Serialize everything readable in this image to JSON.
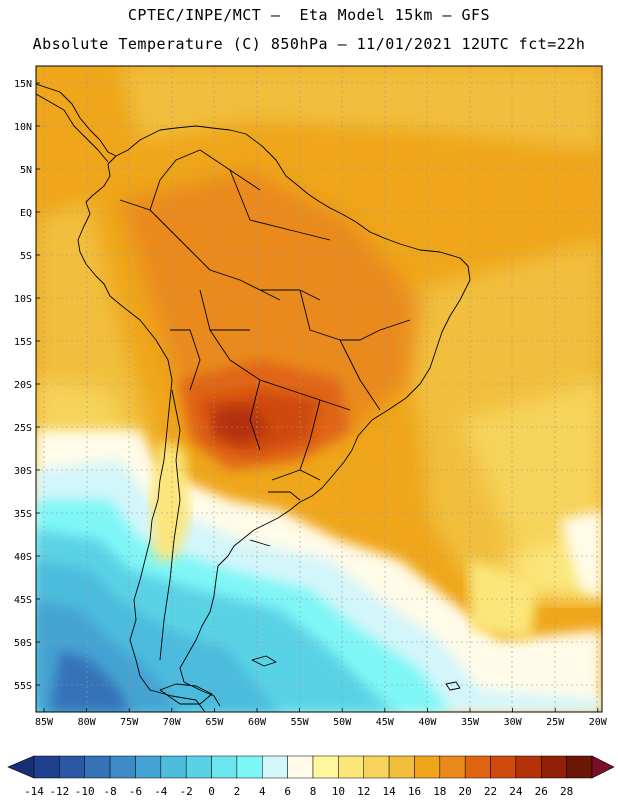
{
  "header": {
    "title_line1": "CPTEC/INPE/MCT –  Eta Model 15km – GFS",
    "title_line2": "Absolute Temperature (C) 850hPa – 11/01/2021 12UTC fct=22h"
  },
  "axes": {
    "lat_labels": [
      "15N",
      "10N",
      "5N",
      "EQ",
      "5S",
      "10S",
      "15S",
      "20S",
      "25S",
      "30S",
      "35S",
      "40S",
      "45S",
      "50S",
      "55S"
    ],
    "lon_labels": [
      "85W",
      "80W",
      "75W",
      "70W",
      "65W",
      "60W",
      "55W",
      "50W",
      "45W",
      "40W",
      "35W",
      "30W",
      "25W",
      "20W"
    ]
  },
  "colorbar": {
    "labels": [
      "-14",
      "-12",
      "-10",
      "-8",
      "-6",
      "-4",
      "-2",
      "0",
      "2",
      "4",
      "6",
      "8",
      "10",
      "12",
      "14",
      "16",
      "18",
      "20",
      "22",
      "24",
      "26",
      "28"
    ],
    "colors": [
      "#1f3f8f",
      "#2a58a6",
      "#3572b8",
      "#3e8bc8",
      "#44a3d3",
      "#4cbcdd",
      "#5ad2e6",
      "#6be6ee",
      "#7ff6f6",
      "#d3f6fa",
      "#fffbe8",
      "#fff7a0",
      "#fbe67a",
      "#f6d35a",
      "#f1bf3c",
      "#efa61a",
      "#ea8a1c",
      "#e06512",
      "#cf4a0c",
      "#b3320a",
      "#902008",
      "#6e1606"
    ],
    "low_color": "#182e74",
    "high_color": "#7a0f2a"
  }
}
